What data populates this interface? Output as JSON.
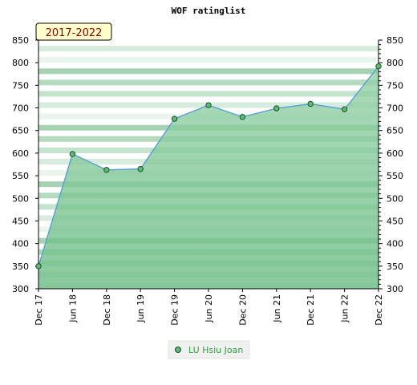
{
  "chart_data": {
    "type": "area",
    "title": "WOF ratinglist",
    "annotation": "2017-2022",
    "xlabel": "",
    "ylabel": "",
    "categories": [
      "Dec 17",
      "Jun 18",
      "Dec 18",
      "Jun 19",
      "Dec 19",
      "Jun 20",
      "Dec 20",
      "Jun 21",
      "Dec 21",
      "Jun 22",
      "Dec 22"
    ],
    "series": [
      {
        "name": "LU Hsiu Joan",
        "values": [
          350,
          598,
          563,
          565,
          676,
          706,
          680,
          699,
          709,
          697,
          792
        ]
      }
    ],
    "ylim": [
      300,
      850
    ],
    "yticks": [
      300,
      350,
      400,
      450,
      500,
      550,
      600,
      650,
      700,
      750,
      800,
      850
    ],
    "grid": true,
    "legend": "bottom-center",
    "colors": {
      "line": "#5a9fd4",
      "area": "#7fc495",
      "marker_fill": "#5dbb73",
      "marker_stroke": "#1e4d2b",
      "badge_bg": "#ffffcc",
      "badge_text": "#8b0000"
    }
  }
}
